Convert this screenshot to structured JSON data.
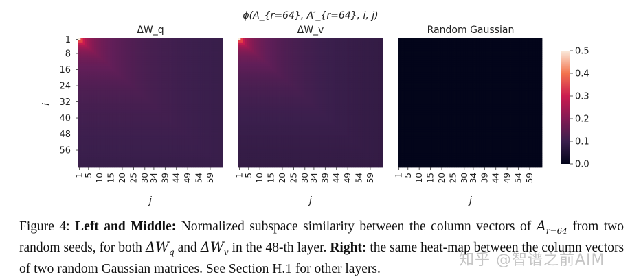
{
  "figure": {
    "suptitle": "ϕ(A_{r=64}, A′_{r=64}, i, j)",
    "ylabel": "i",
    "xlabel": "j",
    "panel_titles": [
      "ΔW_q",
      "ΔW_v",
      "Random Gaussian"
    ],
    "colorbar_ticks": [
      "0.0",
      "0.1",
      "0.2",
      "0.3",
      "0.4",
      "0.5"
    ]
  },
  "chart_data": [
    {
      "type": "heatmap",
      "title": "ΔW_q",
      "xlabel": "j",
      "ylabel": "i",
      "rows": 64,
      "cols": 64,
      "xticks": [
        "1",
        "5",
        "10",
        "15",
        "20",
        "25",
        "30",
        "34",
        "39",
        "44",
        "49",
        "54",
        "59"
      ],
      "yticks": [
        "1",
        "8",
        "16",
        "24",
        "32",
        "40",
        "48",
        "56"
      ],
      "vmin": 0.0,
      "vmax": 0.5,
      "peak_value": 0.5,
      "floor_value": 0.05
    },
    {
      "type": "heatmap",
      "title": "ΔW_v",
      "xlabel": "j",
      "ylabel": "",
      "rows": 64,
      "cols": 64,
      "xticks": [
        "1",
        "5",
        "10",
        "15",
        "20",
        "25",
        "30",
        "34",
        "39",
        "44",
        "49",
        "54",
        "59"
      ],
      "vmin": 0.0,
      "vmax": 0.5,
      "peak_value": 0.5,
      "floor_value": 0.04
    },
    {
      "type": "heatmap",
      "title": "Random Gaussian",
      "xlabel": "j",
      "ylabel": "",
      "rows": 64,
      "cols": 64,
      "xticks": [
        "1",
        "5",
        "10",
        "15",
        "20",
        "25",
        "30",
        "34",
        "39",
        "44",
        "49",
        "54",
        "59"
      ],
      "vmin": 0.0,
      "vmax": 0.5,
      "peak_value": 0.0,
      "floor_value": 0.0
    }
  ],
  "caption": {
    "figure_label": "Figure 4:",
    "bold_1": "Left and Middle:",
    "text_1": "Normalized subspace similarity between the column vectors of",
    "math_1": "A",
    "math_1_sub": "r=64",
    "text_2": "from two random seeds, for both",
    "math_2": "ΔW",
    "math_2_sub": "q",
    "text_3": "and",
    "math_3": "ΔW",
    "math_3_sub": "v",
    "text_4": "in the 48-th layer.",
    "bold_2": "Right:",
    "text_5": "the same heat-map between the column vectors of two random Gaussian matrices. See Section H.1 for other layers."
  },
  "watermark": "知乎 @智谱之前AIM"
}
